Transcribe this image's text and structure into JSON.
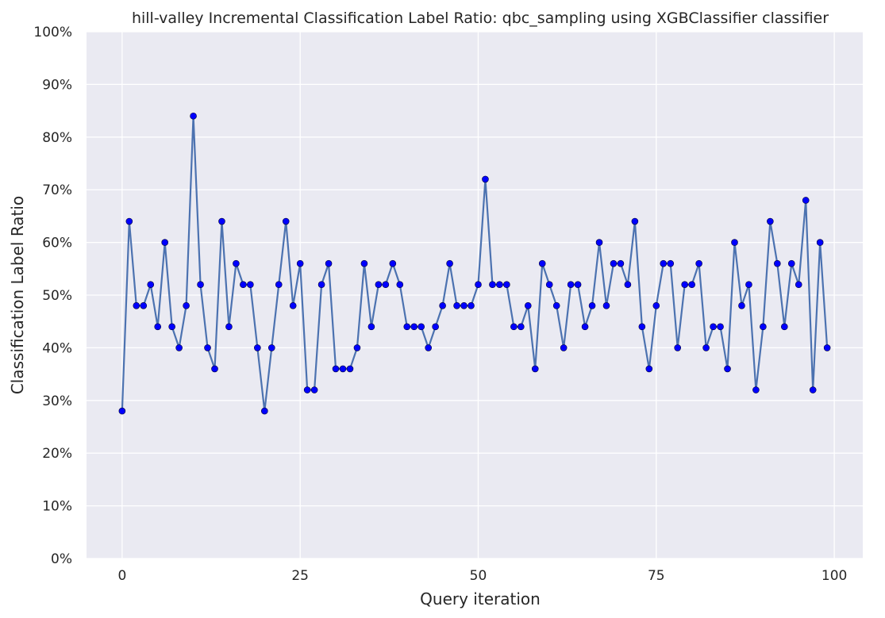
{
  "chart_data": {
    "type": "line",
    "title": "hill-valley Incremental Classification Label Ratio: qbc_sampling using XGBClassifier classifier",
    "xlabel": "Query iteration",
    "ylabel": "Classification Label Ratio",
    "xlim": [
      -5,
      104
    ],
    "ylim": [
      0,
      100
    ],
    "xticks": [
      0,
      25,
      50,
      75,
      100
    ],
    "xtick_labels": [
      "0",
      "25",
      "50",
      "75",
      "100"
    ],
    "yticks": [
      0,
      10,
      20,
      30,
      40,
      50,
      60,
      70,
      80,
      90,
      100
    ],
    "ytick_labels": [
      "0%",
      "10%",
      "20%",
      "30%",
      "40%",
      "50%",
      "60%",
      "70%",
      "80%",
      "90%",
      "100%"
    ],
    "grid": true,
    "series": [
      {
        "line_color": "#4c72b0",
        "marker_color": "#0000ff",
        "x": [
          0,
          1,
          2,
          3,
          4,
          5,
          6,
          7,
          8,
          9,
          10,
          11,
          12,
          13,
          14,
          15,
          16,
          17,
          18,
          19,
          20,
          21,
          22,
          23,
          24,
          25,
          26,
          27,
          28,
          29,
          30,
          31,
          32,
          33,
          34,
          35,
          36,
          37,
          38,
          39,
          40,
          41,
          42,
          43,
          44,
          45,
          46,
          47,
          48,
          49,
          50,
          51,
          52,
          53,
          54,
          55,
          56,
          57,
          58,
          59,
          60,
          61,
          62,
          63,
          64,
          65,
          66,
          67,
          68,
          69,
          70,
          71,
          72,
          73,
          74,
          75,
          76,
          77,
          78,
          79,
          80,
          81,
          82,
          83,
          84,
          85,
          86,
          87,
          88,
          89,
          90,
          91,
          92,
          93,
          94,
          95,
          96,
          97,
          98,
          99
        ],
        "values": [
          28,
          64,
          48,
          48,
          52,
          44,
          60,
          44,
          40,
          48,
          84,
          52,
          40,
          36,
          64,
          44,
          56,
          52,
          52,
          40,
          28,
          40,
          52,
          64,
          48,
          56,
          32,
          32,
          52,
          56,
          36,
          36,
          36,
          40,
          56,
          44,
          52,
          52,
          56,
          52,
          44,
          44,
          44,
          40,
          44,
          48,
          56,
          48,
          48,
          48,
          52,
          72,
          52,
          52,
          52,
          44,
          44,
          48,
          36,
          56,
          52,
          48,
          40,
          52,
          52,
          44,
          48,
          60,
          48,
          56,
          56,
          52,
          64,
          44,
          36,
          48,
          56,
          56,
          40,
          52,
          52,
          56,
          40,
          44,
          44,
          36,
          60,
          48,
          52,
          32,
          44,
          64,
          56,
          44,
          56,
          52,
          68,
          32,
          60,
          40
        ]
      }
    ]
  },
  "colors": {
    "plot_background": "#eaeaf2",
    "grid": "#ffffff",
    "text": "#262626"
  }
}
